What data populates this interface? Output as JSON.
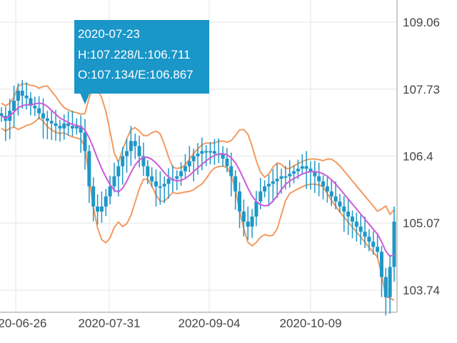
{
  "colors": {
    "candle": "#1f97c6",
    "bollinger": "#f39a5f",
    "moving_average": "#cc5bd9",
    "grid": "#e6e6e6",
    "axis_text": "#444444",
    "tooltip_bg": "#1a96c8",
    "tooltip_text": "#ffffff"
  },
  "tooltip": {
    "date": "2020-07-23",
    "high_low": "H:107.228/L:106.711",
    "open_close": "O:107.134/E:106.867"
  },
  "chart_data": {
    "type": "candlestick",
    "title": "",
    "xlabel": "",
    "ylabel": "",
    "y_ticks": [
      "109.06",
      "107.73",
      "106.4",
      "105.07",
      "103.74"
    ],
    "x_ticks": [
      "2020-06-26",
      "2020-07-31",
      "2020-09-04",
      "2020-10-09"
    ],
    "ylim": [
      103.3,
      109.5
    ],
    "grid": true,
    "y_axis_position": "right",
    "tooltip_point": {
      "date": "2020-07-23",
      "open": 107.134,
      "high": 107.228,
      "low": 106.711,
      "close": 106.867
    },
    "series": [
      {
        "type": "candlestick",
        "close": [
          107.2,
          107.1,
          107.3,
          107.5,
          107.7,
          107.6,
          107.55,
          107.4,
          107.35,
          107.25,
          107.15,
          107.1,
          107.05,
          107.0,
          106.95,
          107.05,
          107.0,
          106.95,
          107.0,
          106.867,
          106.5,
          105.8,
          105.4,
          105.3,
          105.4,
          105.6,
          105.8,
          106.0,
          106.2,
          106.4,
          106.5,
          106.7,
          106.6,
          106.4,
          106.2,
          106.0,
          105.9,
          105.8,
          105.8,
          105.85,
          105.95,
          105.95,
          106.0,
          106.1,
          106.2,
          106.3,
          106.4,
          106.45,
          106.5,
          106.5,
          106.5,
          106.45,
          106.45,
          106.35,
          106.2,
          106.0,
          105.7,
          105.3,
          105.1,
          105.0,
          105.2,
          105.5,
          105.7,
          105.8,
          105.85,
          105.9,
          105.95,
          106.0,
          106.0,
          106.05,
          106.1,
          106.15,
          106.2,
          106.15,
          106.1,
          106.0,
          105.9,
          105.8,
          105.7,
          105.6,
          105.5,
          105.4,
          105.3,
          105.2,
          105.1,
          105.0,
          104.9,
          104.8,
          104.7,
          104.6,
          104.5,
          104.0,
          103.6,
          104.2,
          105.1
        ],
        "note": "daily closes estimated from the plotted candles; the chart shows no per-candle labels"
      },
      {
        "type": "line",
        "role": "moving-average"
      },
      {
        "type": "line",
        "role": "upper-band"
      },
      {
        "type": "line",
        "role": "lower-band"
      }
    ]
  }
}
